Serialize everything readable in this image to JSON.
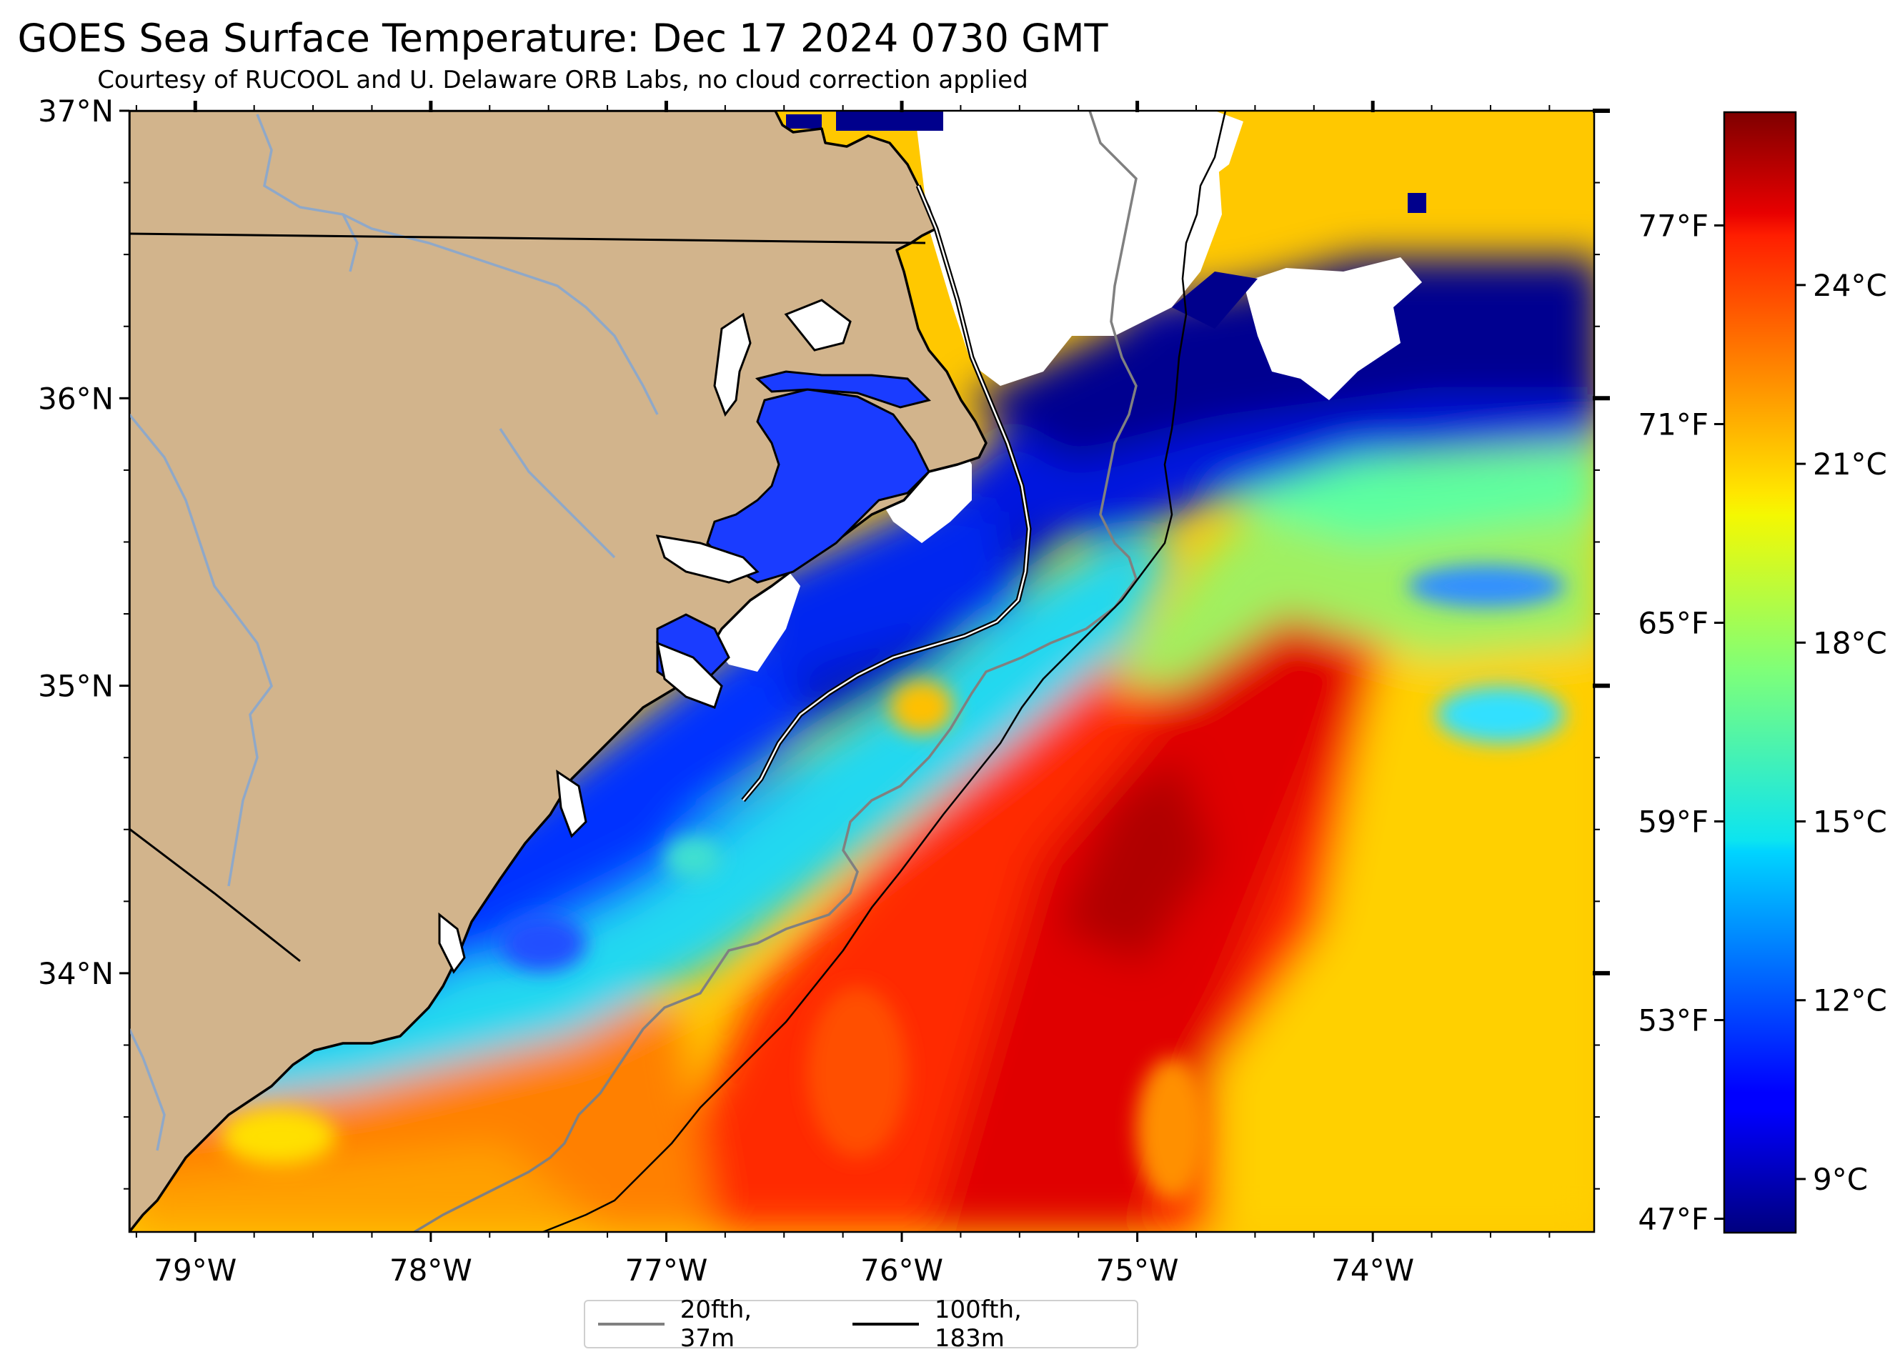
{
  "title": "GOES Sea Surface Temperature: Dec 17 2024 0730 GMT",
  "subtitle": "Courtesy of RUCOOL and U. Delaware ORB Labs, no cloud correction applied",
  "map": {
    "lon_range": [
      -79.28,
      -73.06
    ],
    "lat_range": [
      33.1,
      37.0
    ],
    "x_ticks": [
      {
        "value": -79,
        "label": "79°W"
      },
      {
        "value": -78,
        "label": "78°W"
      },
      {
        "value": -77,
        "label": "77°W"
      },
      {
        "value": -76,
        "label": "76°W"
      },
      {
        "value": -75,
        "label": "75°W"
      },
      {
        "value": -74,
        "label": "74°W"
      }
    ],
    "y_ticks": [
      {
        "value": 37,
        "label": "37°N"
      },
      {
        "value": 36,
        "label": "36°N"
      },
      {
        "value": 35,
        "label": "35°N"
      },
      {
        "value": 34,
        "label": "34°N"
      }
    ],
    "land_color": "#d2b48c",
    "cloud_color": "#ffffff",
    "river_color": "#8fa8c8"
  },
  "colorbar": {
    "colormap": "jet",
    "celsius_range": [
      8.1,
      26.9
    ],
    "celsius_ticks": [
      {
        "value": 9,
        "label": "9°C"
      },
      {
        "value": 12,
        "label": "12°C"
      },
      {
        "value": 15,
        "label": "15°C"
      },
      {
        "value": 18,
        "label": "18°C"
      },
      {
        "value": 21,
        "label": "21°C"
      },
      {
        "value": 24,
        "label": "24°C"
      }
    ],
    "fahrenheit_ticks": [
      {
        "value": 47,
        "label": "47°F"
      },
      {
        "value": 53,
        "label": "53°F"
      },
      {
        "value": 59,
        "label": "59°F"
      },
      {
        "value": 65,
        "label": "65°F"
      },
      {
        "value": 71,
        "label": "71°F"
      },
      {
        "value": 77,
        "label": "77°F"
      }
    ]
  },
  "legend": {
    "items": [
      {
        "label": "20fth, 37m",
        "color": "#808080"
      },
      {
        "label": "100fth, 183m",
        "color": "#000000"
      }
    ]
  }
}
